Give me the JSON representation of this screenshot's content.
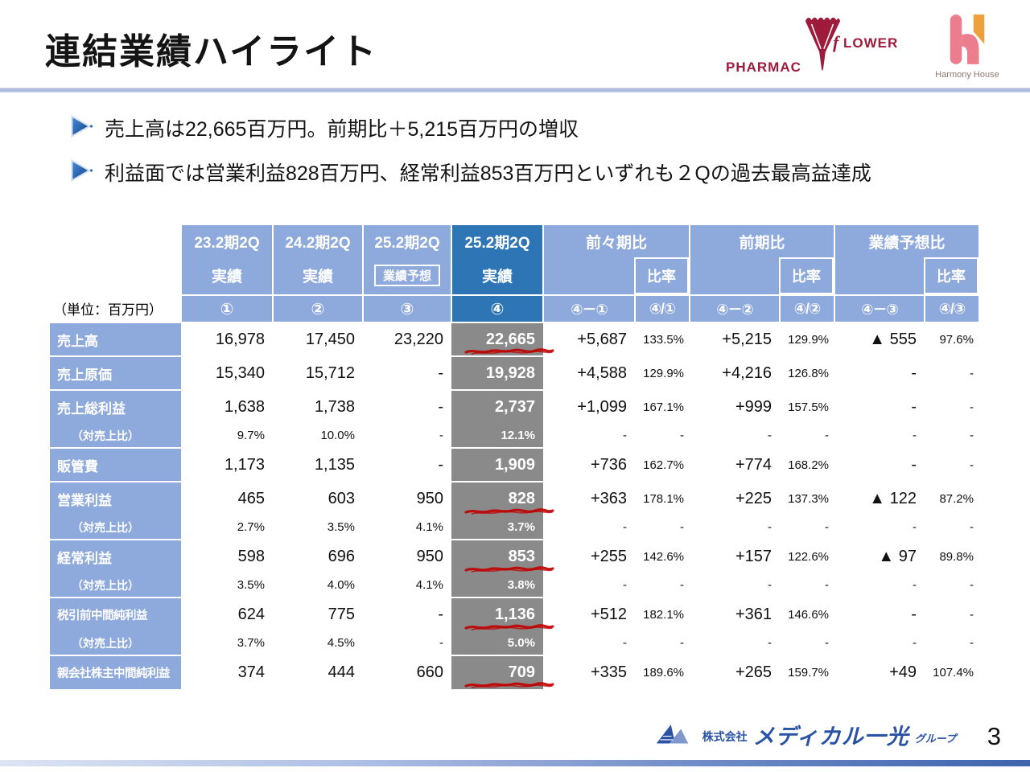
{
  "colors": {
    "header_light_blue": "#8EA9DB",
    "header_dark_blue": "#2E75B6",
    "actual_column_gray": "#8A8A8A",
    "title_rule_blue": "#A4B4DC",
    "scribble_red": "#C00000",
    "pharmacy_flower_red": "#9E1B3C",
    "harmony_house_pink": "#EC7D8C",
    "harmony_house_orange": "#F0A03A",
    "medical_ikko_blue": "#2B53A5"
  },
  "slide": {
    "title": "連結業績ハイライト",
    "unit_label": "（単位：百万円）",
    "page_number": "3"
  },
  "bullets": [
    "売上高は22,665百万円。前期比＋5,215百万円の増収",
    "利益面では営業利益828百万円、経常利益853百万円といずれも２Qの過去最高益達成"
  ],
  "logos": {
    "pharmacy_flower": {
      "left": "PHARMAC",
      "script": "f",
      "right": "LOWER"
    },
    "harmony_house": {
      "caption": "Harmony House"
    },
    "footer": {
      "prefix": "株式会社",
      "main": "メディカル一光",
      "suffix": "グループ"
    }
  },
  "table": {
    "ratio_header": "比率",
    "col_groups": [
      {
        "period": "23.2期2Q",
        "kind": "実績",
        "mark": "①"
      },
      {
        "period": "24.2期2Q",
        "kind": "実績",
        "mark": "②"
      },
      {
        "period": "25.2期2Q",
        "kind": "業績予想",
        "mark": "③"
      },
      {
        "period": "25.2期2Q",
        "kind": "実績",
        "mark": "④"
      },
      {
        "title": "前々期比",
        "marks": [
          "④－①",
          "④/①"
        ]
      },
      {
        "title": "前期比",
        "marks": [
          "④－②",
          "④/②"
        ]
      },
      {
        "title": "業績予想比",
        "marks": [
          "④－③",
          "④/③"
        ]
      }
    ],
    "rows": [
      {
        "label": "売上高",
        "sub": false,
        "block_start": true,
        "scribble": true,
        "values": [
          "16,978",
          "17,450",
          "23,220",
          "22,665",
          "+5,687",
          "133.5%",
          "+5,215",
          "129.9%",
          "▲ 555",
          "97.6%"
        ]
      },
      {
        "label": "売上原価",
        "sub": false,
        "block_start": true,
        "scribble": false,
        "values": [
          "15,340",
          "15,712",
          "-",
          "19,928",
          "+4,588",
          "129.9%",
          "+4,216",
          "126.8%",
          "-",
          "-"
        ]
      },
      {
        "label": "売上総利益",
        "sub": false,
        "block_start": true,
        "scribble": false,
        "values": [
          "1,638",
          "1,738",
          "-",
          "2,737",
          "+1,099",
          "167.1%",
          "+999",
          "157.5%",
          "-",
          "-"
        ]
      },
      {
        "label": "（対売上比）",
        "sub": true,
        "block_start": false,
        "scribble": false,
        "values": [
          "9.7%",
          "10.0%",
          "-",
          "12.1%",
          "-",
          "-",
          "-",
          "-",
          "-",
          "-"
        ]
      },
      {
        "label": "販管費",
        "sub": false,
        "block_start": true,
        "scribble": false,
        "values": [
          "1,173",
          "1,135",
          "-",
          "1,909",
          "+736",
          "162.7%",
          "+774",
          "168.2%",
          "-",
          "-"
        ]
      },
      {
        "label": "営業利益",
        "sub": false,
        "block_start": true,
        "scribble": true,
        "values": [
          "465",
          "603",
          "950",
          "828",
          "+363",
          "178.1%",
          "+225",
          "137.3%",
          "▲ 122",
          "87.2%"
        ]
      },
      {
        "label": "（対売上比）",
        "sub": true,
        "block_start": false,
        "scribble": false,
        "values": [
          "2.7%",
          "3.5%",
          "4.1%",
          "3.7%",
          "-",
          "-",
          "-",
          "-",
          "-",
          "-"
        ]
      },
      {
        "label": "経常利益",
        "sub": false,
        "block_start": true,
        "scribble": true,
        "values": [
          "598",
          "696",
          "950",
          "853",
          "+255",
          "142.6%",
          "+157",
          "122.6%",
          "▲ 97",
          "89.8%"
        ]
      },
      {
        "label": "（対売上比）",
        "sub": true,
        "block_start": false,
        "scribble": false,
        "values": [
          "3.5%",
          "4.0%",
          "4.1%",
          "3.8%",
          "-",
          "-",
          "-",
          "-",
          "-",
          "-"
        ]
      },
      {
        "label": "税引前中間純利益",
        "sub": false,
        "block_start": true,
        "scribble": true,
        "values": [
          "624",
          "775",
          "-",
          "1,136",
          "+512",
          "182.1%",
          "+361",
          "146.6%",
          "-",
          "-"
        ]
      },
      {
        "label": "（対売上比）",
        "sub": true,
        "block_start": false,
        "scribble": false,
        "values": [
          "3.7%",
          "4.5%",
          "-",
          "5.0%",
          "-",
          "-",
          "-",
          "-",
          "-",
          "-"
        ]
      },
      {
        "label": "親会社株主中間純利益",
        "sub": false,
        "block_start": true,
        "scribble": true,
        "values": [
          "374",
          "444",
          "660",
          "709",
          "+335",
          "189.6%",
          "+265",
          "159.7%",
          "+49",
          "107.4%"
        ]
      }
    ]
  }
}
